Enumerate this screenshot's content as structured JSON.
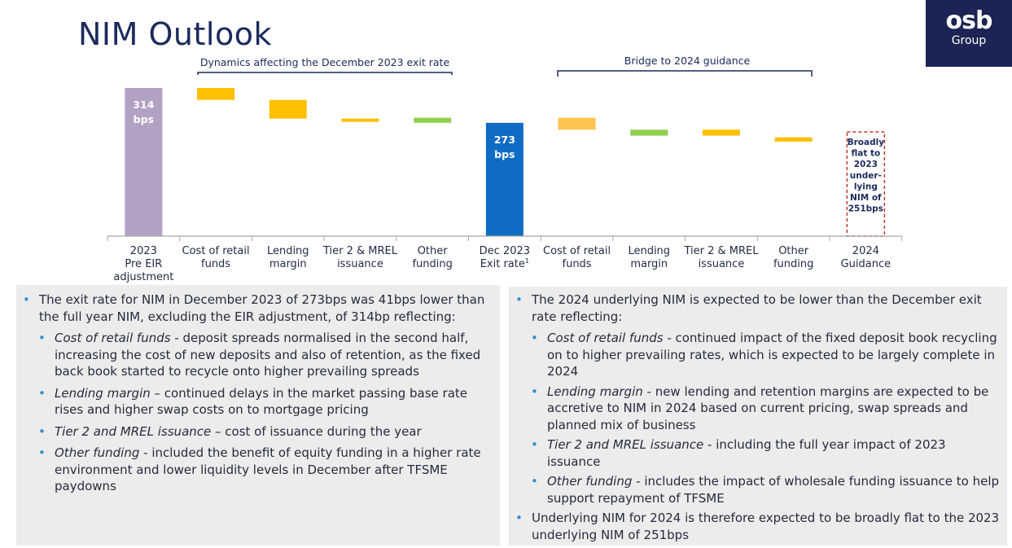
{
  "title": "NIM Outlook",
  "logo": {
    "main": "osb",
    "sub": "Group"
  },
  "brackets": {
    "dynamics": "Dynamics affecting the December 2023 exit rate",
    "bridge": "Bridge to 2024 guidance"
  },
  "chart_data": {
    "type": "bar",
    "subtype": "waterfall",
    "unit": "bps",
    "categories": [
      [
        "2023",
        "Pre EIR",
        "adjustment"
      ],
      [
        "Cost of retail",
        "funds"
      ],
      [
        "Lending",
        "margin"
      ],
      [
        "Tier 2 & MREL",
        "issuance"
      ],
      [
        "Other",
        "funding"
      ],
      [
        "Dec 2023",
        "Exit rate"
      ],
      [
        "Cost of retail",
        "funds"
      ],
      [
        "Lending",
        "margin"
      ],
      [
        "Tier 2 & MREL",
        "issuance"
      ],
      [
        "Other",
        "funding"
      ],
      [
        "2024",
        "Guidance"
      ]
    ],
    "footnote_marker": "1",
    "bars": [
      {
        "kind": "total",
        "value": 314,
        "color": "#b3a1c4",
        "label": [
          "314",
          "bps"
        ]
      },
      {
        "kind": "delta",
        "top": 314,
        "bottom": 300,
        "color": "#ffc000"
      },
      {
        "kind": "delta",
        "top": 300,
        "bottom": 278,
        "color": "#ffc000"
      },
      {
        "kind": "delta",
        "top": 278,
        "bottom": 275,
        "color": "#ffc000"
      },
      {
        "kind": "delta",
        "top": 279,
        "bottom": 273,
        "color": "#92d050"
      },
      {
        "kind": "total",
        "value": 273,
        "color": "#0f6cc4",
        "label": [
          "273",
          "bps"
        ]
      },
      {
        "kind": "delta",
        "top": 279,
        "bottom": 265,
        "color": "#ffc44d"
      },
      {
        "kind": "delta",
        "top": 265,
        "bottom": 258,
        "color": "#92d050"
      },
      {
        "kind": "delta",
        "top": 265,
        "bottom": 258,
        "color": "#ffc000"
      },
      {
        "kind": "delta",
        "top": 256,
        "bottom": 251,
        "color": "#ffc000"
      },
      {
        "kind": "guidance",
        "value": 251,
        "border": "#c0392b",
        "label": [
          "Broadly",
          "flat to",
          "2023",
          "under-",
          "lying",
          "NIM of",
          "251bps"
        ]
      }
    ],
    "ylim": [
      140,
      330
    ]
  },
  "left_panel": {
    "intro": "The exit rate for NIM in December 2023 of 273bps was 41bps lower than the full year NIM, excluding the EIR adjustment, of 314bp reflecting:",
    "items": [
      {
        "label": "Cost of retail funds",
        "text": " - deposit spreads normalised in the second half, increasing the cost of new deposits and also of retention, as the fixed back book started to recycle onto higher prevailing spreads"
      },
      {
        "label": "Lending margin",
        "text": " – continued delays in the market passing base rate rises and higher swap costs on to mortgage pricing"
      },
      {
        "label": "Tier 2 and MREL issuance",
        "text": " – cost of issuance during the year"
      },
      {
        "label": "Other funding",
        "text": " - included the benefit of equity funding in a higher rate environment and lower liquidity levels in December after TFSME paydowns"
      }
    ]
  },
  "right_panel": {
    "intro": "The 2024 underlying NIM is expected to be lower than the December exit rate reflecting:",
    "items": [
      {
        "label": "Cost of retail funds",
        "text": " - continued impact of the fixed deposit book recycling on to higher prevailing rates, which is expected to be largely complete in 2024"
      },
      {
        "label": "Lending margin",
        "text": " - new lending and retention margins are expected to be accretive to NIM in 2024 based on current pricing, swap spreads and planned mix of business"
      },
      {
        "label": "Tier 2 and MREL issuance",
        "text": " - including the full year impact of 2023 issuance"
      },
      {
        "label": "Other funding",
        "text": " - includes the impact of wholesale funding issuance to help support repayment of TFSME"
      }
    ],
    "closing": "Underlying NIM for 2024 is therefore expected to be broadly flat to the 2023 underlying NIM of 251bps"
  }
}
